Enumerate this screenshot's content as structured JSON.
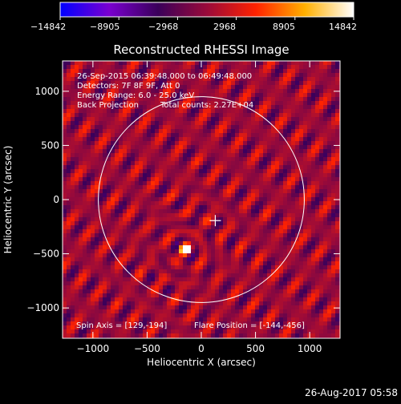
{
  "chart_data": {
    "type": "heatmap",
    "title": "Reconstructed RHESSI Image",
    "xlabel": "Heliocentric X (arcsec)",
    "ylabel": "Heliocentric Y (arcsec)",
    "xlim": [
      -1280,
      1280
    ],
    "ylim": [
      -1280,
      1280
    ],
    "xticks": [
      -1000,
      -500,
      0,
      500,
      1000
    ],
    "xtick_labels": [
      "−1000",
      "−500",
      "0",
      "500",
      "1000"
    ],
    "yticks": [
      -1000,
      -500,
      0,
      500,
      1000
    ],
    "ytick_labels": [
      "−1000",
      "−500",
      "0",
      "500",
      "1000"
    ],
    "colorbar": {
      "min": -14842,
      "max": 14842,
      "ticks": [
        -14842,
        -8905,
        -2968,
        2968,
        8905,
        14842
      ],
      "labels": [
        "−14842",
        "−8905",
        "−2968",
        "2968",
        "8905",
        "14842"
      ],
      "colormap": [
        "#0000ff",
        "#7a00d0",
        "#3a005a",
        "#9a0a3a",
        "#ff2200",
        "#ffb000",
        "#ffffff"
      ]
    },
    "annotations": [
      "26-Sep-2015 06:39:48.000 to 06:49:48.000",
      "Detectors: 7F 8F 9F, Att 0",
      "Energy Range: 6.0 - 25.0 keV",
      "Back Projection",
      "Total counts: 2.27E+04"
    ],
    "spin_axis_text": "Spin Axis = [129,-194]",
    "flare_position_text": "Flare Position = [-144,-456]",
    "spin_axis": [
      129,
      -194
    ],
    "flare_position": [
      -144,
      -456
    ],
    "solar_limb_radius": 950,
    "footer_timestamp": "26-Aug-2017 05:58"
  },
  "colors": {
    "background": "#000000",
    "axes": "#ffffff",
    "limb": "#ffffff"
  }
}
